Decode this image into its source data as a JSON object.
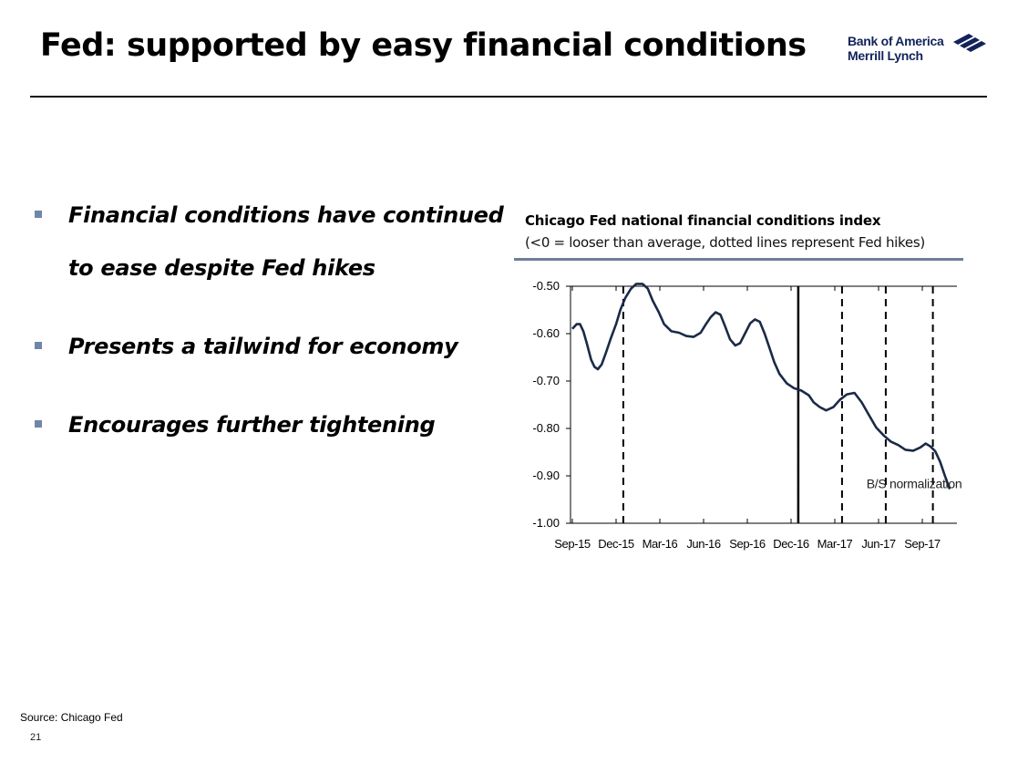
{
  "slide": {
    "title": "Fed: supported by easy financial conditions",
    "logo_line1": "Bank of America",
    "logo_line2": "Merrill Lynch",
    "bullets": [
      {
        "line1": "Financial conditions have continued",
        "line2": "to ease despite Fed hikes"
      },
      {
        "line1": "Presents a tailwind for economy"
      },
      {
        "line1": "Encourages further tightening"
      }
    ],
    "source": "Source: Chicago Fed",
    "page_number": "21",
    "colors": {
      "brand": "#12235a",
      "accent": "#6f86a8",
      "series": "#1b2a47"
    }
  },
  "chart_data": {
    "type": "line",
    "title": "Chicago Fed national financial conditions index",
    "subtitle": "(<0 = looser than average, dotted lines represent Fed hikes)",
    "ylim": [
      -1.0,
      -0.5
    ],
    "yticks": [
      "-0.50",
      "-0.60",
      "-0.70",
      "-0.80",
      "-0.90",
      "-1.00"
    ],
    "ytick_values": [
      -0.5,
      -0.6,
      -0.7,
      -0.8,
      -0.9,
      -1.0
    ],
    "xticks": [
      "Sep-15",
      "Dec-15",
      "Mar-16",
      "Jun-16",
      "Sep-16",
      "Dec-16",
      "Mar-17",
      "Jun-17",
      "Sep-17"
    ],
    "x_start": "2015-09-01",
    "series": [
      {
        "points": [
          [
            "2015-09-01",
            -0.59
          ],
          [
            "2015-09-10",
            -0.58
          ],
          [
            "2015-09-17",
            -0.58
          ],
          [
            "2015-09-24",
            -0.595
          ],
          [
            "2015-10-01",
            -0.62
          ],
          [
            "2015-10-10",
            -0.655
          ],
          [
            "2015-10-17",
            -0.67
          ],
          [
            "2015-10-24",
            -0.675
          ],
          [
            "2015-11-01",
            -0.665
          ],
          [
            "2015-11-10",
            -0.64
          ],
          [
            "2015-11-20",
            -0.61
          ],
          [
            "2015-12-01",
            -0.58
          ],
          [
            "2015-12-10",
            -0.55
          ],
          [
            "2015-12-20",
            -0.525
          ],
          [
            "2016-01-01",
            -0.505
          ],
          [
            "2016-01-12",
            -0.495
          ],
          [
            "2016-01-25",
            -0.495
          ],
          [
            "2016-02-05",
            -0.505
          ],
          [
            "2016-02-15",
            -0.53
          ],
          [
            "2016-02-28",
            -0.555
          ],
          [
            "2016-03-10",
            -0.58
          ],
          [
            "2016-03-25",
            -0.595
          ],
          [
            "2016-04-10",
            -0.598
          ],
          [
            "2016-04-25",
            -0.605
          ],
          [
            "2016-05-10",
            -0.607
          ],
          [
            "2016-05-25",
            -0.598
          ],
          [
            "2016-06-05",
            -0.58
          ],
          [
            "2016-06-15",
            -0.565
          ],
          [
            "2016-06-25",
            -0.555
          ],
          [
            "2016-07-05",
            -0.56
          ],
          [
            "2016-07-15",
            -0.585
          ],
          [
            "2016-07-25",
            -0.612
          ],
          [
            "2016-08-05",
            -0.625
          ],
          [
            "2016-08-15",
            -0.62
          ],
          [
            "2016-08-25",
            -0.6
          ],
          [
            "2016-09-05",
            -0.578
          ],
          [
            "2016-09-15",
            -0.57
          ],
          [
            "2016-09-25",
            -0.575
          ],
          [
            "2016-10-05",
            -0.6
          ],
          [
            "2016-10-15",
            -0.63
          ],
          [
            "2016-10-25",
            -0.66
          ],
          [
            "2016-11-05",
            -0.685
          ],
          [
            "2016-11-20",
            -0.705
          ],
          [
            "2016-12-05",
            -0.715
          ],
          [
            "2016-12-20",
            -0.72
          ],
          [
            "2017-01-05",
            -0.73
          ],
          [
            "2017-01-15",
            -0.745
          ],
          [
            "2017-01-28",
            -0.755
          ],
          [
            "2017-02-10",
            -0.762
          ],
          [
            "2017-02-25",
            -0.755
          ],
          [
            "2017-03-10",
            -0.74
          ],
          [
            "2017-03-25",
            -0.728
          ],
          [
            "2017-04-10",
            -0.725
          ],
          [
            "2017-04-25",
            -0.745
          ],
          [
            "2017-05-10",
            -0.772
          ],
          [
            "2017-05-25",
            -0.798
          ],
          [
            "2017-06-10",
            -0.815
          ],
          [
            "2017-06-25",
            -0.828
          ],
          [
            "2017-07-10",
            -0.835
          ],
          [
            "2017-07-25",
            -0.845
          ],
          [
            "2017-08-10",
            -0.847
          ],
          [
            "2017-08-25",
            -0.84
          ],
          [
            "2017-09-05",
            -0.832
          ],
          [
            "2017-09-15",
            -0.838
          ],
          [
            "2017-09-25",
            -0.848
          ],
          [
            "2017-10-05",
            -0.87
          ],
          [
            "2017-10-15",
            -0.9
          ],
          [
            "2017-10-25",
            -0.928
          ]
        ]
      }
    ],
    "fed_hikes": [
      "2015-12-16",
      "2016-12-14",
      "2017-03-15",
      "2017-06-14",
      "2017-09-20"
    ],
    "bs_normalization": "2017-09-20",
    "annotation": {
      "text": "B/S normalization",
      "date": "2017-05-01",
      "value": -0.93
    },
    "grid": false,
    "legend": "none"
  }
}
